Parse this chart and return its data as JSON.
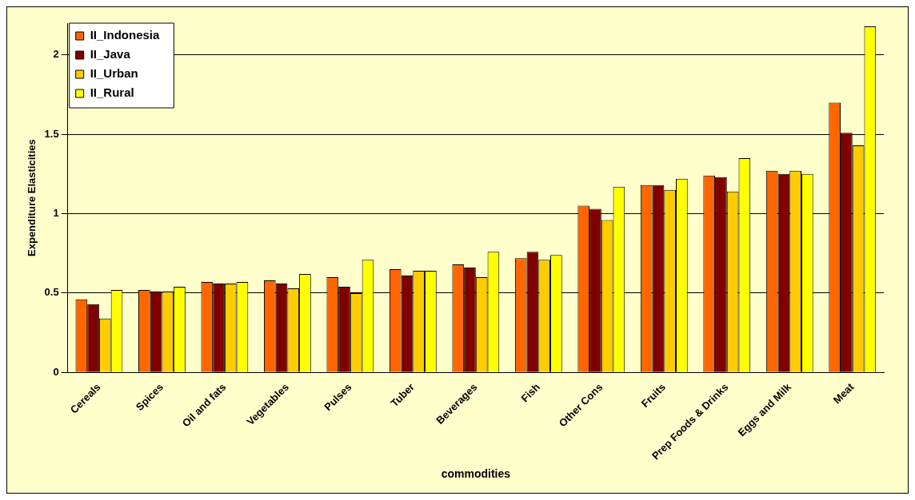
{
  "chart_data": {
    "type": "bar",
    "xlabel": "commodities",
    "ylabel": "Expenditure Elasticities",
    "categories": [
      "Cereals",
      "Spices",
      "Oil and fats",
      "Vegetables",
      "Pulses",
      "Tuber",
      "Beverages",
      "Fish",
      "Other Cons",
      "Fruits",
      "Prep Foods & Drinks",
      "Eggs and Milk",
      "Meat"
    ],
    "series": [
      {
        "name": "II_Indonesia",
        "color": "#ff6600",
        "values": [
          0.46,
          0.52,
          0.57,
          0.58,
          0.6,
          0.65,
          0.68,
          0.72,
          1.05,
          1.18,
          1.24,
          1.27,
          1.7
        ]
      },
      {
        "name": "II_Java",
        "color": "#800000",
        "values": [
          0.43,
          0.51,
          0.56,
          0.56,
          0.54,
          0.61,
          0.66,
          0.76,
          1.03,
          1.18,
          1.23,
          1.25,
          1.51
        ]
      },
      {
        "name": "II_Urban",
        "color": "#ffcc00",
        "values": [
          0.34,
          0.51,
          0.56,
          0.53,
          0.5,
          0.64,
          0.6,
          0.71,
          0.96,
          1.15,
          1.14,
          1.27,
          1.43
        ]
      },
      {
        "name": "II_Rural",
        "color": "#ffff00",
        "values": [
          0.52,
          0.54,
          0.57,
          0.62,
          0.71,
          0.64,
          0.76,
          0.74,
          1.17,
          1.22,
          1.35,
          1.25,
          2.18
        ]
      }
    ],
    "ylim": [
      0,
      2.2
    ],
    "yticks": [
      0,
      0.5,
      1,
      1.5,
      2
    ],
    "grid": "y",
    "legend": "top left"
  }
}
